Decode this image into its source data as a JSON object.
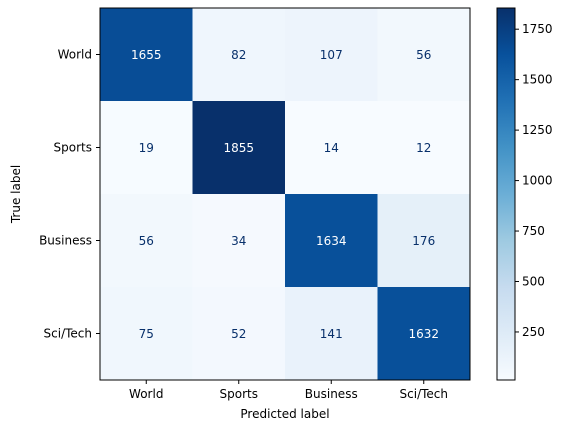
{
  "chart_data": {
    "type": "heatmap",
    "title": "",
    "xlabel": "Predicted label",
    "ylabel": "True label",
    "x_categories": [
      "World",
      "Sports",
      "Business",
      "Sci/Tech"
    ],
    "y_categories": [
      "World",
      "Sports",
      "Business",
      "Sci/Tech"
    ],
    "matrix": [
      [
        1655,
        82,
        107,
        56
      ],
      [
        19,
        1855,
        14,
        12
      ],
      [
        56,
        34,
        1634,
        176
      ],
      [
        75,
        52,
        141,
        1632
      ]
    ],
    "colormap": "Blues",
    "colorbar": {
      "range": [
        12,
        1855
      ],
      "ticks": [
        250,
        500,
        750,
        1000,
        1250,
        1500,
        1750
      ]
    },
    "text_colors": {
      "dark_cell": "#ffffff",
      "light_cell": "#08306b"
    },
    "grid": false
  }
}
